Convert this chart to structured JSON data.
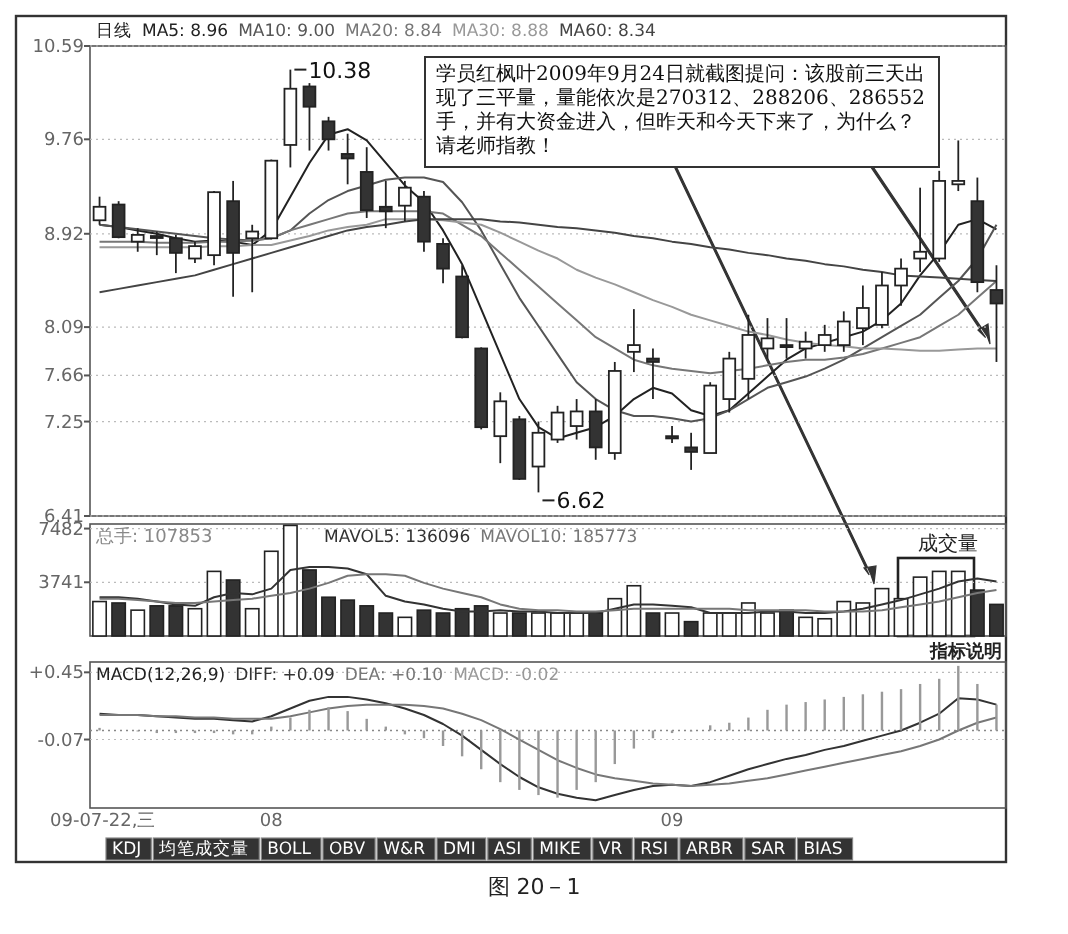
{
  "chart_data": [
    {
      "type": "candlestick",
      "title": "日线",
      "legend": "top left",
      "grid": "y",
      "tick_labels": "y",
      "categories": [
        null,
        null,
        null,
        null,
        null,
        null,
        null,
        null,
        null,
        null,
        null,
        null,
        null,
        null,
        null,
        null,
        null,
        null,
        null,
        null,
        null,
        null,
        null,
        null,
        null,
        null,
        null,
        null,
        null,
        null,
        null,
        null,
        null,
        null,
        null,
        null,
        null,
        null,
        null,
        null,
        null,
        null,
        null,
        null,
        null,
        null,
        null,
        null
      ],
      "ohlc": [
        [
          9.04,
          9.25,
          9.0,
          9.16
        ],
        [
          9.18,
          9.21,
          8.88,
          8.89
        ],
        [
          8.85,
          8.97,
          8.76,
          8.91
        ],
        [
          8.9,
          8.94,
          8.73,
          8.89
        ],
        [
          8.88,
          8.91,
          8.57,
          8.75
        ],
        [
          8.7,
          8.85,
          8.66,
          8.81
        ],
        [
          8.73,
          9.3,
          8.64,
          9.29
        ],
        [
          9.21,
          9.39,
          8.36,
          8.75
        ],
        [
          8.88,
          9.0,
          8.4,
          8.94
        ],
        [
          8.88,
          9.58,
          8.87,
          9.57
        ],
        [
          9.71,
          10.38,
          9.51,
          10.21
        ],
        [
          10.23,
          10.26,
          9.66,
          10.05
        ],
        [
          9.92,
          9.96,
          9.66,
          9.76
        ],
        [
          9.63,
          9.81,
          9.36,
          9.59
        ],
        [
          9.47,
          9.69,
          9.06,
          9.13
        ],
        [
          9.16,
          9.39,
          8.97,
          9.12
        ],
        [
          9.17,
          9.39,
          9.03,
          9.33
        ],
        [
          9.25,
          9.3,
          8.76,
          8.85
        ],
        [
          8.83,
          8.88,
          8.48,
          8.61
        ],
        [
          8.54,
          8.64,
          7.99,
          8.0
        ],
        [
          7.9,
          7.91,
          7.18,
          7.2
        ],
        [
          7.12,
          7.51,
          6.88,
          7.43
        ],
        [
          7.27,
          7.3,
          6.73,
          6.74
        ],
        [
          6.85,
          7.25,
          6.62,
          7.15
        ],
        [
          7.09,
          7.39,
          7.06,
          7.33
        ],
        [
          7.21,
          7.45,
          7.09,
          7.34
        ],
        [
          7.34,
          7.45,
          6.91,
          7.02
        ],
        [
          6.97,
          7.78,
          6.91,
          7.7
        ],
        [
          7.87,
          8.25,
          7.69,
          7.93
        ],
        [
          7.81,
          7.9,
          7.45,
          7.78
        ],
        [
          7.12,
          7.21,
          7.06,
          7.1
        ],
        [
          7.02,
          7.15,
          6.82,
          6.98
        ],
        [
          6.97,
          7.6,
          6.97,
          7.57
        ],
        [
          7.45,
          7.87,
          7.33,
          7.81
        ],
        [
          7.63,
          8.2,
          7.45,
          8.02
        ],
        [
          7.9,
          8.17,
          7.81,
          7.99
        ],
        [
          7.93,
          8.17,
          7.81,
          7.92
        ],
        [
          7.9,
          8.05,
          7.81,
          7.96
        ],
        [
          7.93,
          8.11,
          7.87,
          8.02
        ],
        [
          7.93,
          8.23,
          7.87,
          8.14
        ],
        [
          8.08,
          8.46,
          7.93,
          8.26
        ],
        [
          8.11,
          8.58,
          8.08,
          8.46
        ],
        [
          8.46,
          8.7,
          8.28,
          8.61
        ],
        [
          8.7,
          9.33,
          8.58,
          8.76
        ],
        [
          8.7,
          9.48,
          8.67,
          9.39
        ],
        [
          9.36,
          9.75,
          9.3,
          9.39
        ],
        [
          9.21,
          9.42,
          8.4,
          8.49
        ],
        [
          8.42,
          8.64,
          7.78,
          8.3
        ]
      ],
      "series": [
        {
          "name": "MA5: 8.96",
          "type": "line",
          "color": "#222222",
          "values": [
            9.0,
            8.98,
            8.95,
            8.92,
            8.88,
            8.85,
            8.86,
            8.85,
            8.82,
            8.95,
            9.25,
            9.55,
            9.8,
            9.85,
            9.75,
            9.55,
            9.35,
            9.2,
            8.95,
            8.65,
            8.25,
            7.85,
            7.45,
            7.2,
            7.1,
            7.15,
            7.2,
            7.3,
            7.45,
            7.55,
            7.5,
            7.35,
            7.3,
            7.35,
            7.5,
            7.65,
            7.8,
            7.9,
            7.95,
            8.0,
            8.05,
            8.15,
            8.3,
            8.55,
            8.75,
            9.0,
            9.05,
            8.96
          ]
        },
        {
          "name": "MA10: 9.00",
          "type": "line",
          "color": "#555555",
          "values": [
            9.0,
            8.98,
            8.96,
            8.94,
            8.92,
            8.9,
            8.88,
            8.87,
            8.86,
            8.88,
            8.95,
            9.1,
            9.22,
            9.3,
            9.35,
            9.4,
            9.42,
            9.42,
            9.38,
            9.2,
            8.95,
            8.65,
            8.35,
            8.1,
            7.85,
            7.6,
            7.45,
            7.35,
            7.3,
            7.3,
            7.28,
            7.25,
            7.28,
            7.35,
            7.45,
            7.55,
            7.6,
            7.65,
            7.72,
            7.8,
            7.9,
            8.0,
            8.1,
            8.2,
            8.35,
            8.5,
            8.7,
            9.0
          ]
        },
        {
          "name": "MA20: 8.84",
          "type": "line",
          "color": "#777777",
          "values": [
            8.85,
            8.85,
            8.85,
            8.84,
            8.84,
            8.84,
            8.85,
            8.85,
            8.86,
            8.88,
            8.95,
            9.0,
            9.05,
            9.1,
            9.12,
            9.12,
            9.12,
            9.12,
            9.1,
            9.0,
            8.9,
            8.75,
            8.6,
            8.45,
            8.3,
            8.15,
            8.0,
            7.9,
            7.8,
            7.75,
            7.72,
            7.7,
            7.68,
            7.7,
            7.72,
            7.75,
            7.78,
            7.8,
            7.8,
            7.82,
            7.85,
            7.9,
            7.95,
            8.0,
            8.1,
            8.2,
            8.35,
            8.5
          ]
        },
        {
          "name": "MA30: 8.88",
          "type": "line",
          "color": "#999999",
          "values": [
            8.8,
            8.8,
            8.8,
            8.8,
            8.8,
            8.8,
            8.81,
            8.81,
            8.82,
            8.82,
            8.86,
            8.9,
            8.95,
            8.98,
            9.0,
            9.05,
            9.05,
            9.05,
            9.04,
            9.02,
            9.0,
            8.93,
            8.85,
            8.77,
            8.7,
            8.6,
            8.53,
            8.47,
            8.4,
            8.33,
            8.27,
            8.2,
            8.15,
            8.1,
            8.05,
            8.02,
            7.98,
            7.95,
            7.93,
            7.92,
            7.9,
            7.9,
            7.89,
            7.88,
            7.88,
            7.89,
            7.9,
            7.9
          ]
        },
        {
          "name": "MA60: 8.34",
          "type": "line",
          "color": "#444444",
          "values": [
            8.4,
            8.43,
            8.46,
            8.49,
            8.52,
            8.55,
            8.6,
            8.65,
            8.7,
            8.75,
            8.8,
            8.85,
            8.9,
            8.95,
            8.98,
            9.0,
            9.03,
            9.05,
            9.05,
            9.05,
            9.05,
            9.03,
            9.02,
            9.0,
            8.98,
            8.97,
            8.95,
            8.93,
            8.9,
            8.88,
            8.85,
            8.83,
            8.8,
            8.78,
            8.75,
            8.73,
            8.7,
            8.68,
            8.65,
            8.63,
            8.6,
            8.58,
            8.55,
            8.54,
            8.53,
            8.52,
            8.51,
            8.5
          ]
        }
      ],
      "ylim": [
        6.41,
        10.59
      ],
      "yticks": [
        10.59,
        9.76,
        8.92,
        8.09,
        7.66,
        7.25,
        6.41
      ],
      "annotations": [
        "10.38",
        "6.62",
        "学员红枫叶2009年9月24日就截图提问：该股前三天出现了三平量，量能依次是270312、288206、286552手，并有大资金进入，但昨天和今天下来了，为什么？请老师指教！"
      ]
    },
    {
      "type": "bar",
      "title": "成交量",
      "legend": "top left",
      "grid": "y",
      "tick_labels": "y",
      "categories": [
        null,
        null,
        null,
        null,
        null,
        null,
        null,
        null,
        null,
        null,
        null,
        null,
        null,
        null,
        null,
        null,
        null,
        null,
        null,
        null,
        null,
        null,
        null,
        null,
        null,
        null,
        null,
        null,
        null,
        null,
        null,
        null,
        null,
        null,
        null,
        null,
        null,
        null,
        null,
        null,
        null,
        null,
        null,
        null,
        null,
        null,
        null,
        null
      ],
      "series": [
        {
          "type": "bar",
          "values": [
            2400,
            2300,
            1800,
            2100,
            2100,
            1900,
            4500,
            3900,
            1900,
            5900,
            7700,
            4600,
            2700,
            2500,
            2100,
            1600,
            1300,
            1800,
            1600,
            1900,
            2100,
            1600,
            1600,
            1600,
            1600,
            1600,
            1600,
            2600,
            3500,
            1600,
            1600,
            1000,
            1600,
            1600,
            2300,
            1600,
            1800,
            1300,
            1200,
            2400,
            2300,
            3300,
            2600,
            4100,
            4500,
            4500,
            3200,
            2200
          ],
          "colors": [
            "#ffffff",
            "#333333",
            "#ffffff",
            "#333333",
            "#333333",
            "#ffffff",
            "#ffffff",
            "#333333",
            "#ffffff",
            "#ffffff",
            "#ffffff",
            "#333333",
            "#333333",
            "#333333",
            "#333333",
            "#333333",
            "#ffffff",
            "#333333",
            "#333333",
            "#333333",
            "#333333",
            "#ffffff",
            "#333333",
            "#ffffff",
            "#ffffff",
            "#ffffff",
            "#333333",
            "#ffffff",
            "#ffffff",
            "#333333",
            "#ffffff",
            "#333333",
            "#ffffff",
            "#ffffff",
            "#ffffff",
            "#ffffff",
            "#333333",
            "#ffffff",
            "#ffffff",
            "#ffffff",
            "#ffffff",
            "#ffffff",
            "#ffffff",
            "#ffffff",
            "#ffffff",
            "#ffffff",
            "#333333",
            "#333333"
          ]
        },
        {
          "name": "MAVOL5: 136096",
          "type": "line",
          "color": "#333333",
          "values": [
            2700,
            2700,
            2600,
            2400,
            2200,
            2100,
            2700,
            3000,
            2900,
            3300,
            4600,
            4800,
            4800,
            4700,
            4300,
            2800,
            2400,
            2200,
            1900,
            1700,
            1700,
            1800,
            1700,
            1700,
            1600,
            1600,
            1600,
            1900,
            2200,
            2200,
            2100,
            2000,
            1600,
            1600,
            1600,
            1700,
            1700,
            1600,
            1600,
            1700,
            1900,
            2200,
            2500,
            2900,
            3300,
            3800,
            4000,
            3800
          ]
        },
        {
          "name": "MAVOL10: 185773",
          "type": "line",
          "color": "#777777",
          "values": [
            2600,
            2600,
            2500,
            2400,
            2300,
            2300,
            2400,
            2500,
            2600,
            2800,
            3000,
            3300,
            3700,
            4200,
            4300,
            4300,
            4200,
            3700,
            3300,
            3000,
            2700,
            2200,
            1900,
            1800,
            1800,
            1700,
            1700,
            1800,
            1900,
            1900,
            1900,
            1900,
            1900,
            1900,
            1800,
            1800,
            1800,
            1800,
            1700,
            1700,
            1700,
            1800,
            2000,
            2200,
            2400,
            2700,
            3000,
            3200
          ]
        }
      ],
      "ylim": [
        0,
        7800
      ],
      "yticks": [
        3741,
        7482
      ],
      "annotations": [
        "总手: 107853",
        "指标说明"
      ]
    },
    {
      "type": "bar",
      "title": "MACD(12,26,9)",
      "legend": "top left",
      "grid": "y",
      "categories": [
        "09-07-22,三",
        null,
        null,
        null,
        null,
        null,
        null,
        null,
        null,
        "08",
        null,
        null,
        null,
        null,
        null,
        null,
        null,
        null,
        null,
        null,
        null,
        null,
        null,
        null,
        null,
        null,
        null,
        null,
        null,
        null,
        "09",
        null,
        null,
        null,
        null,
        null,
        null,
        null,
        null,
        null,
        null,
        null,
        null,
        null,
        null,
        null,
        null,
        null
      ],
      "series": [
        {
          "name": "DIFF: +0.09",
          "type": "line",
          "color": "#333333",
          "values": [
            0.13,
            0.12,
            0.12,
            0.11,
            0.1,
            0.09,
            0.09,
            0.08,
            0.07,
            0.11,
            0.17,
            0.23,
            0.26,
            0.26,
            0.24,
            0.21,
            0.17,
            0.12,
            0.05,
            -0.04,
            -0.15,
            -0.26,
            -0.36,
            -0.44,
            -0.49,
            -0.52,
            -0.54,
            -0.5,
            -0.46,
            -0.43,
            -0.42,
            -0.43,
            -0.4,
            -0.35,
            -0.3,
            -0.26,
            -0.22,
            -0.19,
            -0.15,
            -0.12,
            -0.08,
            -0.04,
            0.0,
            0.06,
            0.13,
            0.25,
            0.24,
            0.2
          ]
        },
        {
          "name": "DEA: +0.10",
          "type": "line",
          "color": "#777777",
          "values": [
            0.12,
            0.12,
            0.12,
            0.11,
            0.11,
            0.1,
            0.1,
            0.09,
            0.09,
            0.09,
            0.11,
            0.14,
            0.17,
            0.19,
            0.2,
            0.2,
            0.2,
            0.19,
            0.17,
            0.13,
            0.08,
            0.01,
            -0.07,
            -0.15,
            -0.23,
            -0.29,
            -0.34,
            -0.37,
            -0.39,
            -0.41,
            -0.42,
            -0.43,
            -0.42,
            -0.41,
            -0.39,
            -0.37,
            -0.34,
            -0.31,
            -0.28,
            -0.25,
            -0.22,
            -0.19,
            -0.16,
            -0.12,
            -0.07,
            0.0,
            0.06,
            0.1
          ]
        },
        {
          "name": "MACD: -0.02",
          "type": "bar",
          "color": "#999999",
          "values": [
            0.02,
            null,
            0.0,
            -0.02,
            -0.02,
            -0.02,
            -0.02,
            -0.03,
            -0.03,
            0.03,
            0.1,
            0.16,
            0.18,
            0.15,
            0.09,
            0.03,
            -0.03,
            -0.06,
            -0.12,
            -0.2,
            -0.3,
            -0.4,
            -0.46,
            -0.5,
            -0.52,
            -0.46,
            -0.4,
            -0.26,
            -0.14,
            -0.06,
            -0.02,
            0.0,
            0.04,
            0.06,
            0.1,
            0.16,
            0.2,
            0.22,
            0.24,
            0.26,
            0.28,
            0.3,
            0.32,
            0.36,
            0.4,
            0.5,
            0.36,
            0.2
          ]
        }
      ],
      "ylim": [
        -0.6,
        0.53
      ],
      "yticks": [
        {
          "value": 0.45,
          "label": "+0.45"
        },
        -0.07
      ],
      "ref_lines": [
        {
          "axis": "y",
          "value": 0,
          "line_style": "dotted"
        }
      ],
      "annotations": [
        "KDJ",
        "均笔成交量",
        "BOLL",
        "OBV",
        "W&R",
        "DMI",
        "ASI",
        "MIKE",
        "VR",
        "RSI",
        "ARBR",
        "SAR",
        "BIAS",
        "图 20－1"
      ]
    }
  ]
}
